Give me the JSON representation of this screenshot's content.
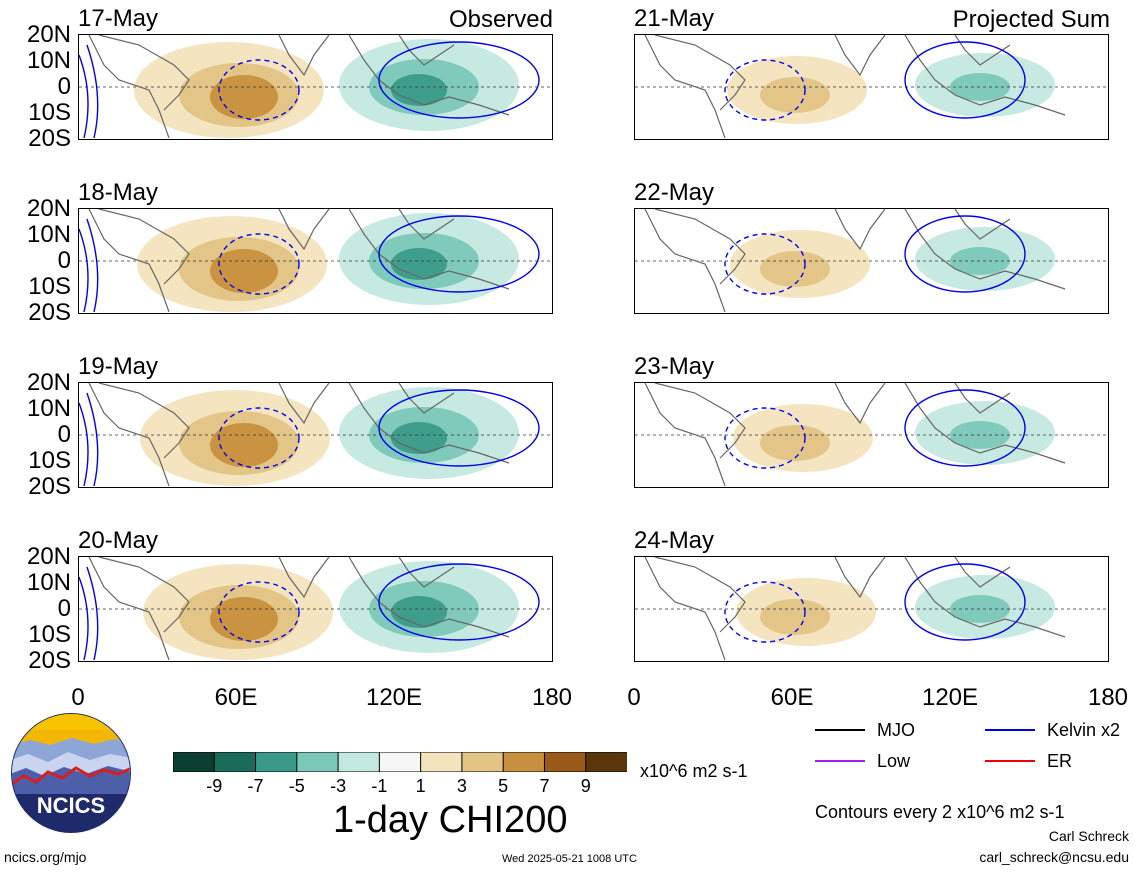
{
  "header": {
    "observed_label": "Observed",
    "projected_label": "Projected Sum"
  },
  "panels": [
    {
      "date": "17-May",
      "column": "observed"
    },
    {
      "date": "18-May",
      "column": "observed"
    },
    {
      "date": "19-May",
      "column": "observed"
    },
    {
      "date": "20-May",
      "column": "observed"
    },
    {
      "date": "21-May",
      "column": "projected"
    },
    {
      "date": "22-May",
      "column": "projected"
    },
    {
      "date": "23-May",
      "column": "projected"
    },
    {
      "date": "24-May",
      "column": "projected"
    }
  ],
  "lat_ticks": [
    "20N",
    "10N",
    "0",
    "10S",
    "20S"
  ],
  "lon_ticks": [
    "0",
    "60E",
    "120E",
    "180"
  ],
  "colorbar": {
    "colors": [
      "#0b3d30",
      "#1a6b5a",
      "#3a9a88",
      "#7cc8b8",
      "#c3e8df",
      "#f6f6f6",
      "#f3e4bd",
      "#e2c484",
      "#c8903e",
      "#9a5a17",
      "#5c360b"
    ],
    "ticks": [
      "-9",
      "-7",
      "-5",
      "-3",
      "-1",
      "1",
      "3",
      "5",
      "7",
      "9"
    ],
    "units": "x10^6 m2 s-1",
    "title": "1-day CHI200"
  },
  "legend": [
    {
      "label": "MJO",
      "color": "#000000"
    },
    {
      "label": "Kelvin x2",
      "color": "#0000ee"
    },
    {
      "label": "Low",
      "color": "#a020f0"
    },
    {
      "label": "ER",
      "color": "#ee0000"
    }
  ],
  "contour_note": "Contours every 2 x10^6 m2 s-1",
  "credit": {
    "name": "Carl Schreck",
    "email": "carl_schreck@ncsu.edu"
  },
  "footer": {
    "url": "ncics.org/mjo",
    "timestamp": "Wed 2025-05-21 1008 UTC"
  },
  "logo": {
    "text": "NCICS"
  }
}
